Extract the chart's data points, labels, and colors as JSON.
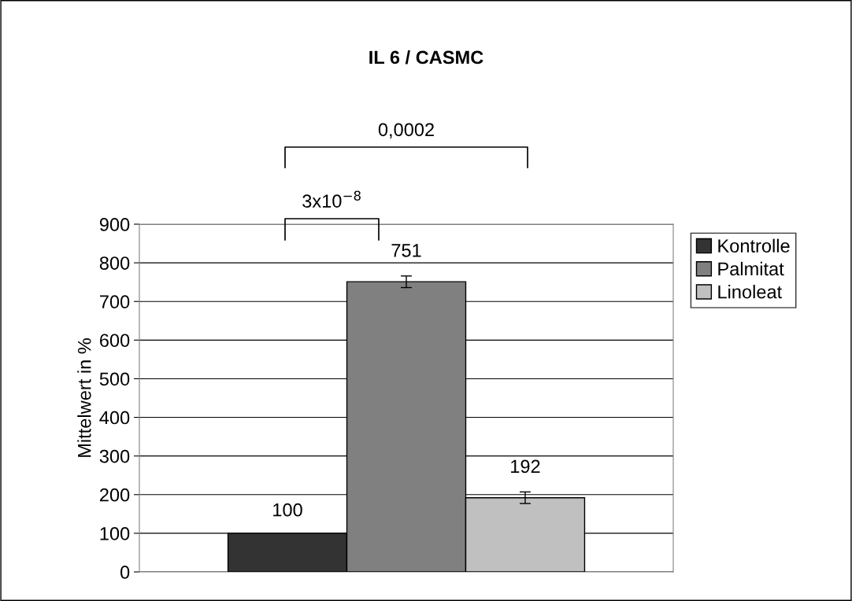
{
  "chart_data": {
    "type": "bar",
    "title": "IL 6 / CASMC",
    "ylabel": "Mittelwert in %",
    "categories": [
      null
    ],
    "series": [
      {
        "name": "Kontrolle",
        "color": "#333333",
        "values": [
          100
        ],
        "errors": [
          null
        ]
      },
      {
        "name": "Palmitat",
        "color": "#808080",
        "values": [
          751
        ],
        "errors": [
          15
        ]
      },
      {
        "name": "Linoleat",
        "color": "#c0c0c0",
        "values": [
          192
        ],
        "errors": [
          15
        ]
      }
    ],
    "ylim": [
      0,
      900
    ],
    "yticks": [
      0,
      100,
      200,
      300,
      400,
      500,
      600,
      700,
      800,
      900
    ],
    "grid": "y",
    "legend": "right",
    "data_labels": true,
    "annotations": [
      "3x10$^{−8}$",
      "0,0002"
    ]
  }
}
